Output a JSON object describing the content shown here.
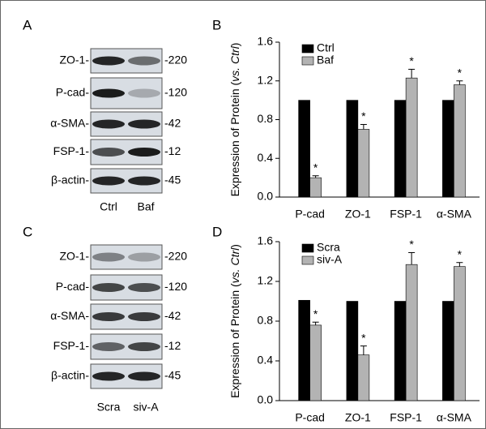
{
  "chart_data": [
    {
      "type": "bar",
      "panel_label": "B",
      "y_label_parts": [
        "Expression of Protein (",
        "vs. Ctrl",
        ")"
      ],
      "categories": [
        "P-cad",
        "ZO-1",
        "FSP-1",
        "α-SMA"
      ],
      "series": [
        {
          "name": "Ctrl",
          "color": "#000000",
          "values": [
            1.0,
            1.0,
            1.0,
            1.0
          ]
        },
        {
          "name": "Baf",
          "color": "#b3b3b3",
          "values": [
            0.2,
            0.7,
            1.23,
            1.16
          ],
          "errors": [
            0.02,
            0.05,
            0.09,
            0.04
          ],
          "annotations": [
            "*",
            "*",
            "*",
            "*"
          ]
        }
      ],
      "ylim": [
        0,
        1.6
      ],
      "yticks": [
        {
          "value": 0,
          "label": "0.0"
        },
        0.4,
        0.8,
        1.2,
        1.6
      ],
      "legend": "top-left"
    },
    {
      "type": "bar",
      "panel_label": "D",
      "y_label_parts": [
        "Expression of Protein (",
        "vs. Ctrl",
        ")"
      ],
      "categories": [
        "P-cad",
        "ZO-1",
        "FSP-1",
        "α-SMA"
      ],
      "series": [
        {
          "name": "Scra",
          "color": "#000000",
          "values": [
            1.01,
            1.0,
            1.0,
            1.0
          ]
        },
        {
          "name": "siv-A",
          "color": "#b3b3b3",
          "values": [
            0.76,
            0.46,
            1.37,
            1.35
          ],
          "errors": [
            0.03,
            0.09,
            0.12,
            0.04
          ],
          "annotations": [
            "*",
            "*",
            "*",
            "*"
          ]
        }
      ],
      "ylim": [
        0,
        1.6
      ],
      "yticks": [
        {
          "value": 0,
          "label": "0.0"
        },
        0.4,
        0.8,
        1.2,
        1.6
      ],
      "legend": "top-left"
    }
  ],
  "blots": [
    {
      "panel_label": "A",
      "rows": [
        "ZO-1-",
        "P-cad-",
        "α-SMA-",
        "FSP-1-",
        "β-actin-"
      ],
      "sizes": [
        "-220",
        "-120",
        "-42",
        "-12",
        "-45"
      ],
      "lanes": [
        "Ctrl",
        "Baf"
      ]
    },
    {
      "panel_label": "C",
      "rows": [
        "ZO-1-",
        "P-cad-",
        "α-SMA-",
        "FSP-1-",
        "β-actin-"
      ],
      "sizes": [
        "-220",
        "-120",
        "-42",
        "-12",
        "-45"
      ],
      "lanes": [
        "Scra",
        "siv-A"
      ]
    }
  ]
}
